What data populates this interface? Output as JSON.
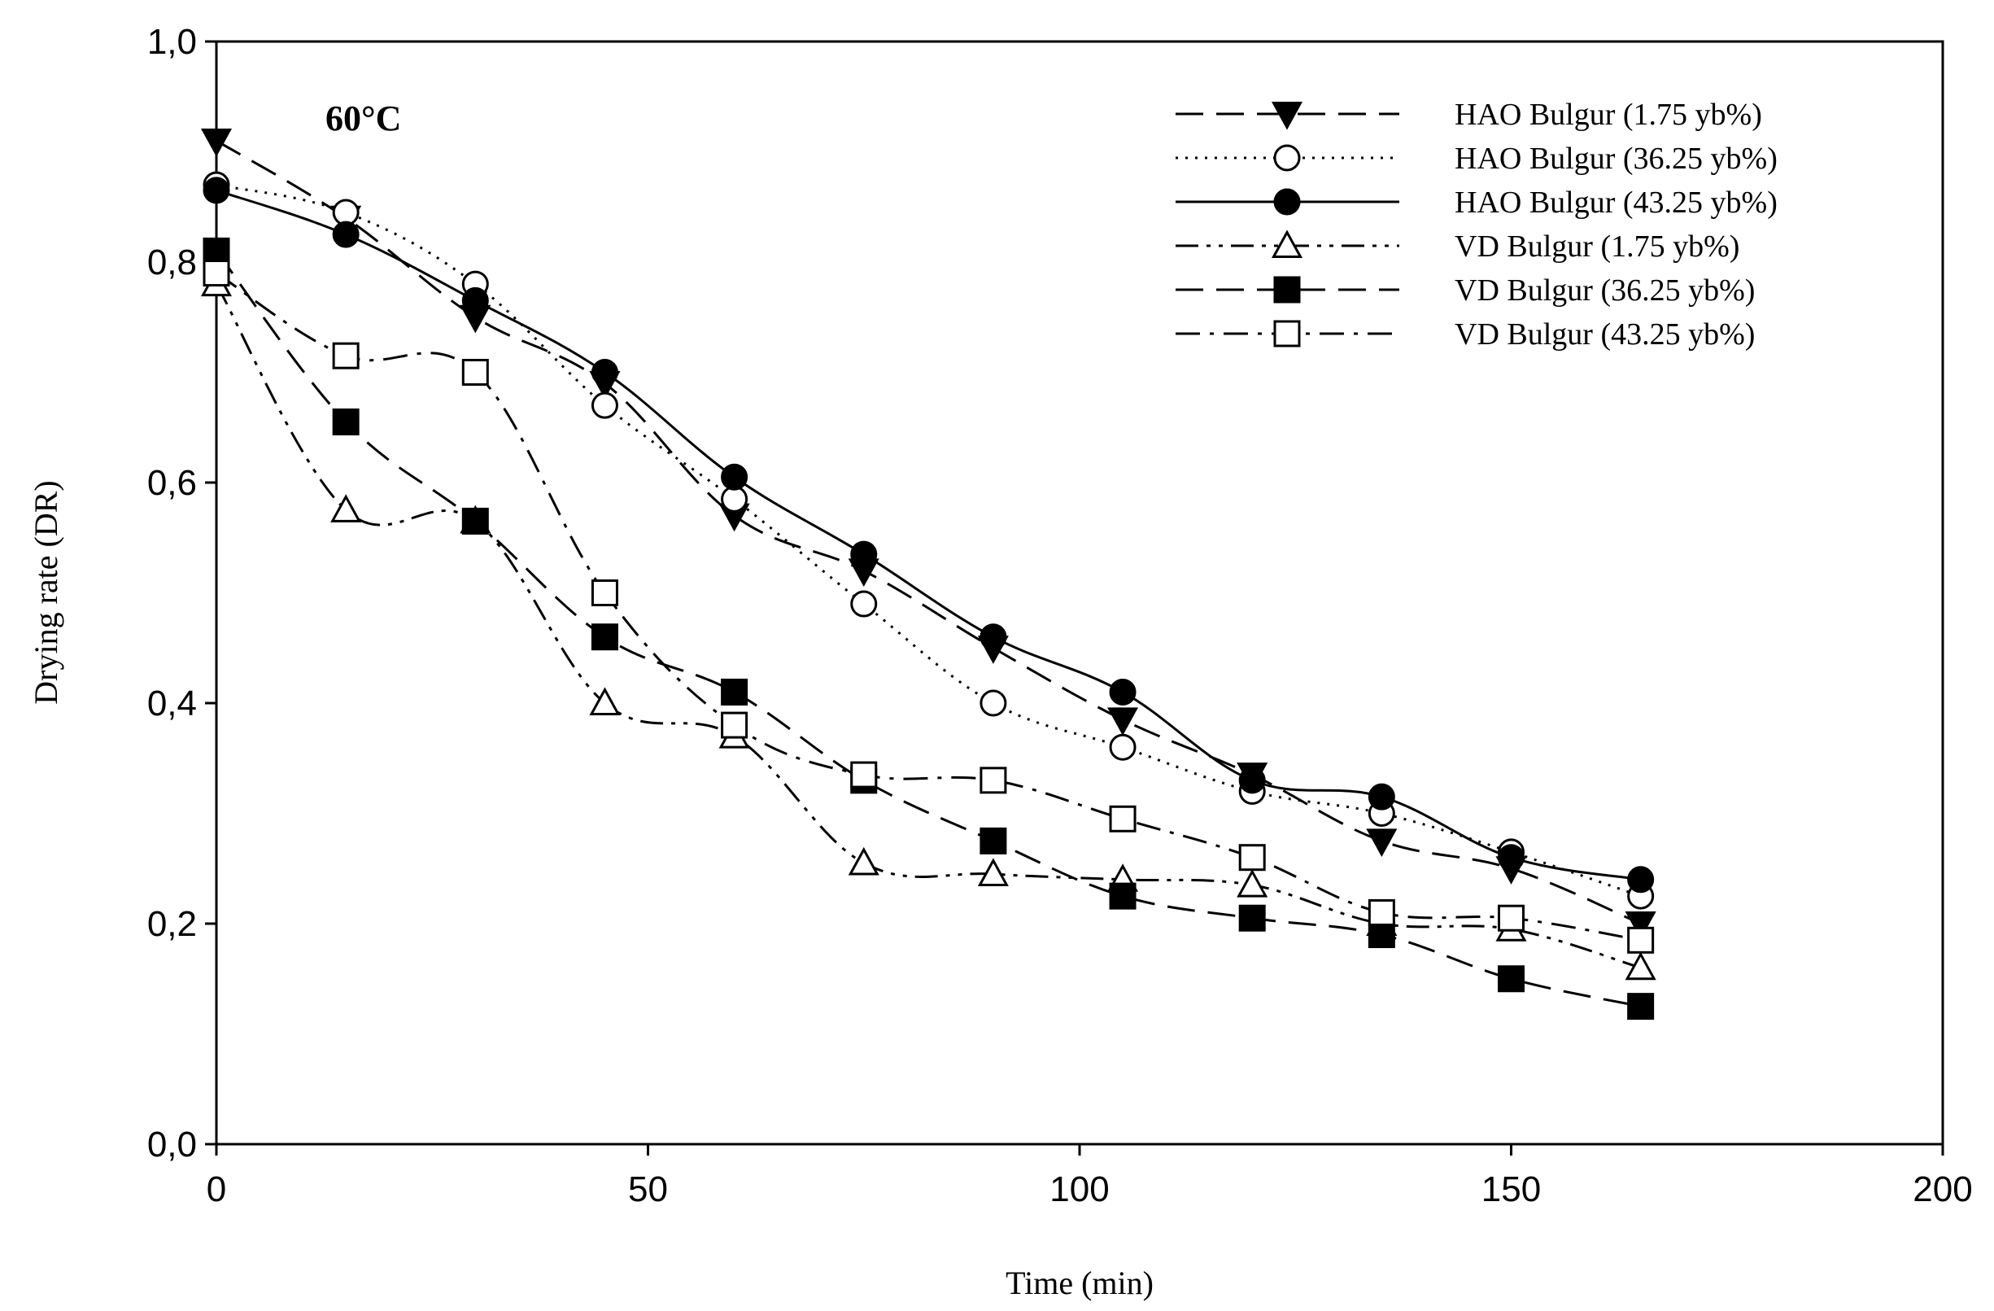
{
  "chart_data": {
    "type": "line",
    "title": "",
    "annotation": "60°C",
    "xlabel": "Time (min)",
    "ylabel": "Drying rate (DR)",
    "xlim": [
      0,
      200
    ],
    "ylim": [
      0,
      1.0
    ],
    "xticks": [
      0,
      50,
      100,
      150,
      200
    ],
    "xtick_labels": [
      "0",
      "50",
      "100",
      "150",
      "200"
    ],
    "yticks": [
      0,
      0.2,
      0.4,
      0.6,
      0.8,
      1.0
    ],
    "ytick_labels": [
      "0,0",
      "0,2",
      "0,4",
      "0,6",
      "0,8",
      "1,0"
    ],
    "grid": false,
    "legend_position": "top-right",
    "x": [
      0,
      15,
      30,
      45,
      60,
      75,
      90,
      105,
      120,
      135,
      150,
      165
    ],
    "series": [
      {
        "name": "HAO Bulgur (1.75 yb%)",
        "marker": "triangle-down-filled",
        "dash": "long-dash",
        "values": [
          0.91,
          0.84,
          0.75,
          0.69,
          0.57,
          0.52,
          0.45,
          0.385,
          0.335,
          0.275,
          0.25,
          0.2
        ]
      },
      {
        "name": "HAO Bulgur (36.25 yb%)",
        "marker": "circle-open",
        "dash": "dotted",
        "values": [
          0.87,
          0.845,
          0.78,
          0.67,
          0.585,
          0.49,
          0.4,
          0.36,
          0.32,
          0.3,
          0.265,
          0.225
        ]
      },
      {
        "name": "HAO Bulgur (43.25 yb%)",
        "marker": "circle-filled",
        "dash": "solid",
        "values": [
          0.865,
          0.825,
          0.765,
          0.7,
          0.605,
          0.535,
          0.46,
          0.41,
          0.33,
          0.315,
          0.26,
          0.24
        ]
      },
      {
        "name": "VD Bulgur (1.75 yb%)",
        "marker": "triangle-up-open",
        "dash": "dash-dot-dot",
        "values": [
          0.78,
          0.575,
          0.565,
          0.4,
          0.37,
          0.255,
          0.245,
          0.24,
          0.235,
          0.2,
          0.195,
          0.16
        ]
      },
      {
        "name": "VD Bulgur (36.25 yb%)",
        "marker": "square-filled",
        "dash": "long-dash",
        "values": [
          0.81,
          0.655,
          0.565,
          0.46,
          0.41,
          0.33,
          0.275,
          0.225,
          0.205,
          0.19,
          0.15,
          0.125
        ]
      },
      {
        "name": "VD Bulgur (43.25 yb%)",
        "marker": "square-open",
        "dash": "dash-dot",
        "values": [
          0.79,
          0.715,
          0.7,
          0.5,
          0.38,
          0.335,
          0.33,
          0.295,
          0.26,
          0.21,
          0.205,
          0.185
        ]
      }
    ]
  }
}
